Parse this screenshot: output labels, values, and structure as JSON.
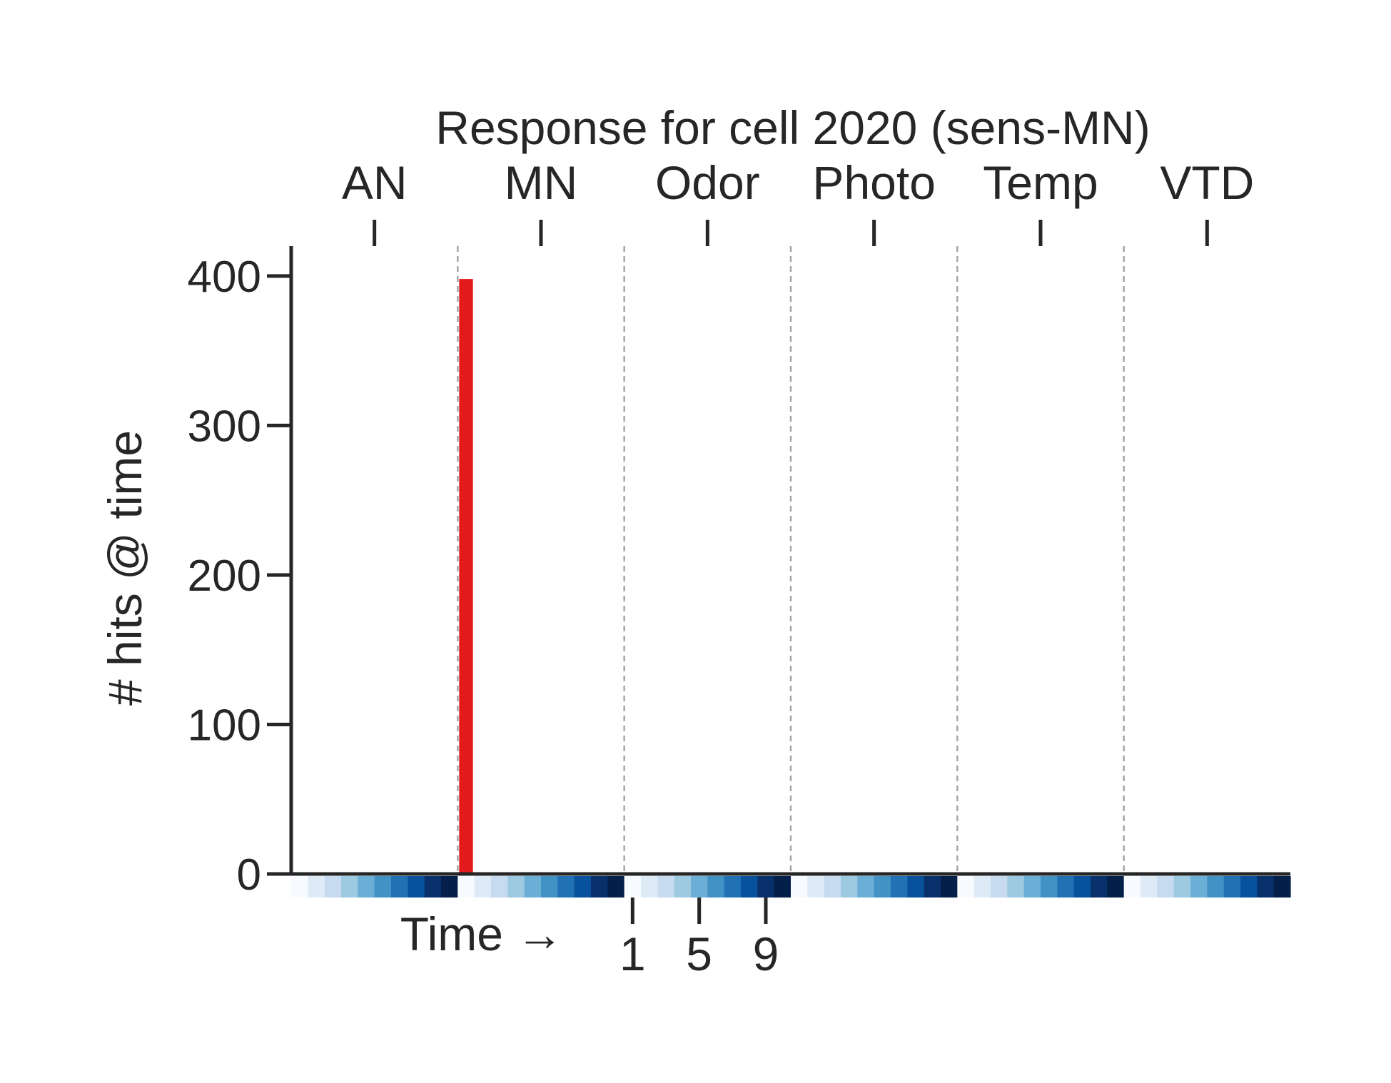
{
  "chart_data": {
    "type": "bar",
    "title": "Response for cell 2020 (sens-MN)",
    "ylabel": "# hits @ time",
    "xlabel": "Time →",
    "ylim": [
      0,
      420
    ],
    "yticks": [
      0,
      100,
      200,
      300,
      400
    ],
    "ytick_labels": [
      "0",
      "100",
      "200",
      "300",
      "400"
    ],
    "groups": [
      "AN",
      "MN",
      "Odor",
      "Photo",
      "Temp",
      "VTD"
    ],
    "timesteps_per_group": 10,
    "x_range": [
      0,
      60
    ],
    "time_ticks": [
      {
        "label": "1",
        "x": 20.5
      },
      {
        "label": "5",
        "x": 24.5
      },
      {
        "label": "9",
        "x": 28.5
      }
    ],
    "series": [
      {
        "values": [
          0,
          0,
          0,
          0,
          0,
          0,
          0,
          0,
          0,
          0,
          398,
          0,
          0,
          0,
          0,
          0,
          0,
          0,
          0,
          0,
          0,
          0,
          0,
          0,
          0,
          0,
          0,
          0,
          0,
          0,
          0,
          0,
          0,
          0,
          0,
          0,
          0,
          0,
          0,
          0,
          0,
          0,
          0,
          0,
          0,
          0,
          0,
          0,
          0,
          0,
          0,
          0,
          0,
          0,
          0,
          0,
          0,
          0,
          0,
          0
        ]
      }
    ],
    "bar_color": "#e31a1c",
    "time_colormap": [
      "#f7fbff",
      "#deebf7",
      "#c6dbef",
      "#9ecae1",
      "#6baed6",
      "#4292c6",
      "#2171b5",
      "#08519c",
      "#08306b",
      "#041f4a"
    ],
    "separator_color": "#a6a6a6",
    "grid": false
  }
}
